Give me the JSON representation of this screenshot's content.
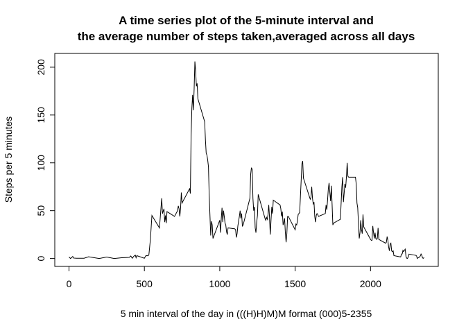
{
  "chart_data": {
    "type": "line",
    "title": [
      "A time series plot of the 5-minute interval and",
      "the average number of steps taken,averaged across all days"
    ],
    "x_label": "5 min interval of the day in (((H)H)M)M format (000)5-2355",
    "y_label": "Steps per 5 minutes",
    "color": "#000000",
    "x": [
      0,
      10,
      25,
      30,
      50,
      100,
      130,
      200,
      250,
      300,
      350,
      400,
      410,
      420,
      430,
      440,
      445,
      450,
      500,
      510,
      525,
      530,
      540,
      550,
      600,
      615,
      620,
      630,
      635,
      640,
      645,
      650,
      700,
      720,
      725,
      730,
      735,
      740,
      745,
      750,
      800,
      805,
      810,
      815,
      820,
      825,
      830,
      835,
      840,
      845,
      850,
      855,
      900,
      905,
      910,
      915,
      920,
      925,
      930,
      935,
      940,
      945,
      950,
      955,
      1000,
      1005,
      1010,
      1015,
      1020,
      1025,
      1030,
      1035,
      1040,
      1045,
      1050,
      1055,
      1100,
      1105,
      1110,
      1115,
      1120,
      1130,
      1135,
      1140,
      1145,
      1150,
      1155,
      1200,
      1205,
      1210,
      1215,
      1220,
      1225,
      1230,
      1235,
      1240,
      1245,
      1250,
      1255,
      1300,
      1305,
      1310,
      1315,
      1320,
      1325,
      1330,
      1335,
      1340,
      1345,
      1350,
      1355,
      1400,
      1405,
      1410,
      1415,
      1420,
      1425,
      1430,
      1435,
      1440,
      1445,
      1450,
      1455,
      1500,
      1505,
      1510,
      1515,
      1520,
      1525,
      1530,
      1535,
      1540,
      1545,
      1550,
      1555,
      1600,
      1605,
      1610,
      1615,
      1620,
      1625,
      1630,
      1635,
      1640,
      1645,
      1650,
      1655,
      1700,
      1705,
      1710,
      1715,
      1720,
      1725,
      1730,
      1735,
      1740,
      1745,
      1750,
      1755,
      1800,
      1805,
      1810,
      1815,
      1820,
      1825,
      1830,
      1835,
      1840,
      1845,
      1850,
      1855,
      1900,
      1905,
      1910,
      1915,
      1920,
      1925,
      1930,
      1935,
      1940,
      1945,
      1950,
      1955,
      2000,
      2005,
      2010,
      2015,
      2020,
      2025,
      2030,
      2035,
      2040,
      2045,
      2050,
      2055,
      2100,
      2105,
      2110,
      2115,
      2120,
      2125,
      2130,
      2135,
      2140,
      2145,
      2150,
      2155,
      2200,
      2205,
      2210,
      2215,
      2220,
      2225,
      2230,
      2235,
      2240,
      2245,
      2250,
      2255,
      2300,
      2305,
      2310,
      2315,
      2320,
      2325,
      2330,
      2335,
      2340,
      2345,
      2350,
      2355
    ],
    "values": [
      1.7,
      0,
      2.1,
      0.5,
      0.3,
      0.3,
      1.8,
      0,
      1.5,
      0,
      0.8,
      1.2,
      2.6,
      0.3,
      2.4,
      3.5,
      0.8,
      3,
      0.3,
      3,
      2.9,
      4,
      20,
      45,
      32,
      63,
      47,
      52,
      38,
      45,
      37,
      49,
      44,
      50,
      55,
      52,
      44,
      52,
      69,
      58,
      73,
      68,
      129,
      157,
      171,
      155,
      177,
      206,
      196,
      180,
      183,
      167,
      143,
      124,
      110,
      108,
      103,
      96,
      66,
      45,
      24,
      39,
      35,
      21,
      40,
      27,
      42,
      53,
      38,
      50,
      44,
      37,
      35,
      28,
      25,
      32,
      31,
      30,
      22,
      26,
      34,
      44,
      50,
      42,
      47,
      34,
      35,
      63,
      88,
      95,
      93,
      63,
      50,
      54,
      32,
      27,
      38,
      45,
      67,
      42,
      40,
      43,
      41,
      46,
      56,
      43,
      25,
      40,
      54,
      47,
      61,
      56,
      52,
      44,
      49,
      35,
      38,
      42,
      27,
      17,
      26,
      44,
      44,
      30,
      36,
      35,
      39,
      46,
      47,
      48,
      65,
      82,
      99,
      102,
      84,
      62,
      64,
      75,
      63,
      57,
      59,
      44,
      38,
      45,
      47,
      46,
      44,
      47,
      56,
      51,
      61,
      73,
      79,
      69,
      60,
      76,
      57,
      35,
      37,
      41,
      58,
      75,
      85,
      59,
      68,
      78,
      74,
      85,
      100,
      86,
      85,
      85,
      78,
      58,
      53,
      37,
      21,
      27,
      40,
      30,
      26,
      46,
      33,
      20,
      19,
      19,
      34,
      27,
      21,
      27,
      21,
      20,
      21,
      32,
      20,
      16,
      17,
      23,
      19,
      12,
      8,
      15,
      16,
      8,
      7,
      8,
      3,
      1.6,
      4.6,
      4.8,
      8.5,
      7.1,
      8.7,
      9.8,
      2.2,
      0.3,
      0.1,
      1.6,
      4.6,
      3.3,
      2.8,
      0,
      0.8,
      1,
      1.6,
      2.6,
      4.7,
      3.3,
      0.6,
      0.2,
      1.1
    ],
    "xlim": [
      -94.2,
      2449.2
    ],
    "xticks": [
      0,
      500,
      1000,
      1500,
      2000
    ],
    "ylim": [
      -8.25,
      214.4
    ],
    "yticks": [
      0,
      50,
      100,
      150,
      200
    ]
  }
}
